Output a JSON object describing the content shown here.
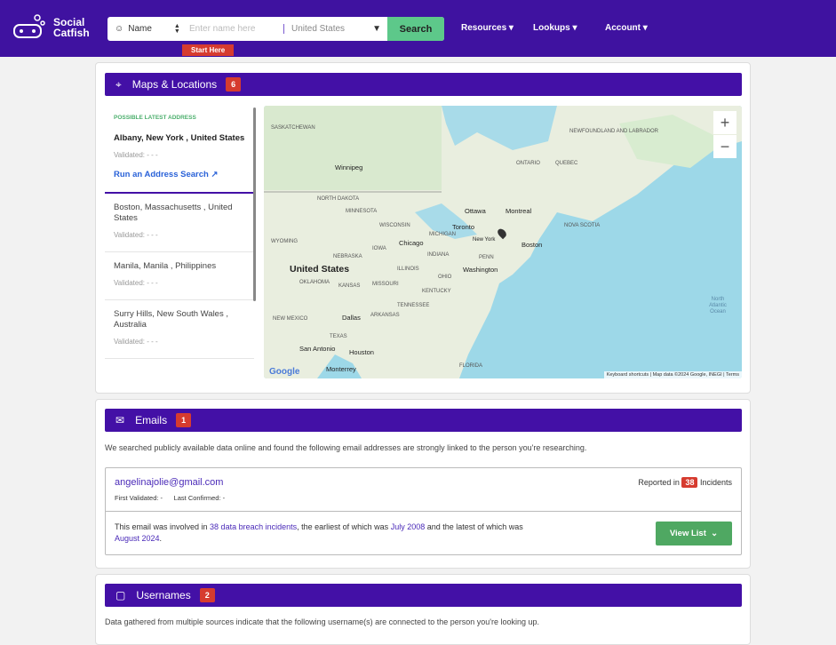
{
  "header": {
    "logo_line1": "Social",
    "logo_line2": "Catfish",
    "search_type": "Name",
    "search_placeholder": "Enter name here",
    "country": "United States",
    "search_label": "Search",
    "start_here": "Start Here",
    "nav": [
      "Resources",
      "Lookups",
      "Account"
    ]
  },
  "maps": {
    "title": "Maps & Locations",
    "count": "6",
    "possible_latest": "POSSIBLE LATEST ADDRESS",
    "addresses": [
      {
        "name": "Albany, New York , United States",
        "validated": "Validated: - - -"
      },
      {
        "name": "Boston, Massachusetts , United States",
        "validated": "Validated: - - -"
      },
      {
        "name": "Manila, Manila , Philippines",
        "validated": "Validated: - - -"
      },
      {
        "name": "Surry Hills, New South Wales , Australia",
        "validated": "Validated: - - -"
      }
    ],
    "run_search": "Run an Address Search",
    "map_labels": {
      "country": "United States",
      "cities": [
        "Winnipeg",
        "Ottawa",
        "Montreal",
        "Toronto",
        "Chicago",
        "New York",
        "Boston",
        "Washington",
        "Dallas",
        "Houston",
        "San Antonio",
        "Monterrey"
      ],
      "ocean": "North Atlantic Ocean",
      "regions": [
        "ONTARIO",
        "QUEBEC",
        "NORTH DAKOTA",
        "MINNESOTA",
        "WISCONSIN",
        "MICHIGAN",
        "IOWA",
        "ILLINOIS",
        "INDIANA",
        "OHIO",
        "PENN",
        "KANSAS",
        "MISSOURI",
        "KENTUCKY",
        "TENNESSEE",
        "OKLAHOMA",
        "ARKANSAS",
        "TEXAS",
        "NEW MEXICO",
        "FLORIDA",
        "NEWFOUNDLAND AND LABRADOR",
        "NOVA SCOTIA",
        "SASKATCHEWAN",
        "WYOMING",
        "NEBRASKA"
      ],
      "google": "Google",
      "attribution": [
        "Keyboard shortcuts",
        "Map data ©2024 Google, INEGI",
        "Terms"
      ]
    }
  },
  "emails": {
    "title": "Emails",
    "count": "1",
    "description": "We searched publicly available data online and found the following email addresses are strongly linked to the person you're researching.",
    "email": "angelinajolie@gmail.com",
    "first_validated": "First Validated: -",
    "last_confirmed": "Last Confirmed: -",
    "reported_prefix": "Reported in",
    "incidents": "38",
    "reported_suffix": "Incidents",
    "breach_text_1": "This email was involved in ",
    "breach_link": "38 data breach incidents",
    "breach_text_2": ", the earliest of which was ",
    "earliest": "July 2008",
    "breach_text_3": " and the latest of which was ",
    "latest": "August 2024",
    "breach_text_4": ".",
    "view_list": "View List"
  },
  "usernames": {
    "title": "Usernames",
    "count": "2",
    "description": "Data gathered from multiple sources indicate that the following username(s) are connected to the person you're looking up."
  },
  "colors": {
    "brand": "#4310a6",
    "badge": "#d63b2f",
    "search_button": "#5dc88a",
    "view_list": "#4fa862"
  }
}
